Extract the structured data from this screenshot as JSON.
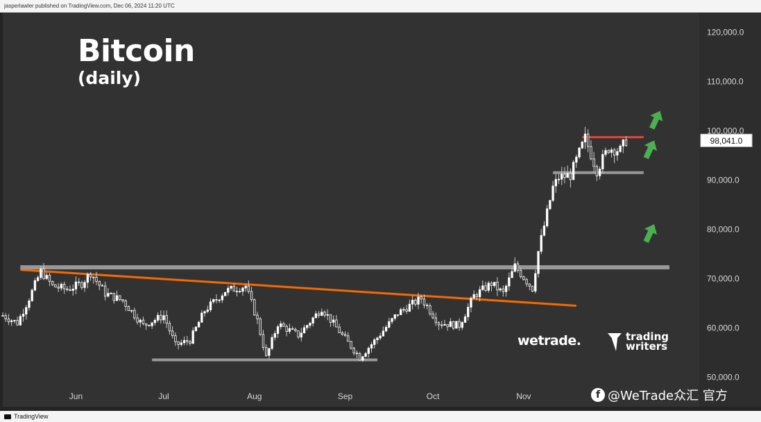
{
  "header": {
    "publisher_text": "jasperlawler published on TradingView.com, Dec 06, 2024 11:20 UTC"
  },
  "footer": {
    "brand": "TradingView"
  },
  "overlay": {
    "title": "Bitcoin",
    "subtitle": "(daily)",
    "brand_wetrade": "wetrade.",
    "brand_tw_line1": "trading",
    "brand_tw_line2": "writers",
    "watermark": "@WeTrade众汇 官方"
  },
  "chart_data": {
    "type": "candlestick",
    "symbol": "Bitcoin",
    "timeframe": "daily",
    "y_ticks": [
      120000,
      110000,
      100000,
      90000,
      80000,
      70000,
      60000,
      50000
    ],
    "y_tick_labels": [
      "120,000.0",
      "110,000.0",
      "100,000.0",
      "90,000.0",
      "80,000.0",
      "70,000.0",
      "60,000.0",
      "50,000.0"
    ],
    "ylim": [
      44000,
      124000
    ],
    "x_range": [
      "2024-05-07",
      "2024-12-31"
    ],
    "x_ticks": [
      {
        "label": "Jun",
        "date": "2024-06-01"
      },
      {
        "label": "Jul",
        "date": "2024-07-01"
      },
      {
        "label": "Aug",
        "date": "2024-08-01"
      },
      {
        "label": "Sep",
        "date": "2024-09-01"
      },
      {
        "label": "Oct",
        "date": "2024-10-01"
      },
      {
        "label": "Nov",
        "date": "2024-11-01"
      }
    ],
    "last_price": 98041,
    "last_price_label": "98,041.0",
    "close_path": [
      [
        "2024-05-07",
        62500
      ],
      [
        "2024-05-12",
        61000
      ],
      [
        "2024-05-16",
        66000
      ],
      [
        "2024-05-20",
        71500
      ],
      [
        "2024-05-24",
        68500
      ],
      [
        "2024-05-29",
        67800
      ],
      [
        "2024-06-03",
        69000
      ],
      [
        "2024-06-06",
        71200
      ],
      [
        "2024-06-11",
        67000
      ],
      [
        "2024-06-17",
        65500
      ],
      [
        "2024-06-24",
        60500
      ],
      [
        "2024-07-01",
        62500
      ],
      [
        "2024-07-05",
        56500
      ],
      [
        "2024-07-10",
        57500
      ],
      [
        "2024-07-15",
        63500
      ],
      [
        "2024-07-22",
        67500
      ],
      [
        "2024-07-29",
        68500
      ],
      [
        "2024-08-02",
        61500
      ],
      [
        "2024-08-05",
        54000
      ],
      [
        "2024-08-09",
        60800
      ],
      [
        "2024-08-16",
        58500
      ],
      [
        "2024-08-24",
        64000
      ],
      [
        "2024-08-31",
        58500
      ],
      [
        "2024-09-06",
        54000
      ],
      [
        "2024-09-12",
        58000
      ],
      [
        "2024-09-19",
        63000
      ],
      [
        "2024-09-27",
        66000
      ],
      [
        "2024-10-03",
        61000
      ],
      [
        "2024-10-10",
        60500
      ],
      [
        "2024-10-15",
        66500
      ],
      [
        "2024-10-21",
        69000
      ],
      [
        "2024-10-25",
        67000
      ],
      [
        "2024-10-29",
        72500
      ],
      [
        "2024-11-04",
        68000
      ],
      [
        "2024-11-06",
        75500
      ],
      [
        "2024-11-11",
        88500
      ],
      [
        "2024-11-13",
        90500
      ],
      [
        "2024-11-17",
        91000
      ],
      [
        "2024-11-22",
        98500
      ],
      [
        "2024-11-26",
        92000
      ],
      [
        "2024-11-30",
        96500
      ],
      [
        "2024-12-04",
        96000
      ],
      [
        "2024-12-06",
        98041
      ]
    ],
    "annotations": {
      "lines": [
        {
          "kind": "trendline",
          "color": "#ff6d00",
          "from": [
            "2024-05-13",
            71800
          ],
          "to": [
            "2024-11-19",
            64500
          ]
        },
        {
          "kind": "resistance",
          "color": "#9e9e9e",
          "value": 72300,
          "from": "2024-05-13",
          "to": "2024-12-31"
        },
        {
          "kind": "support",
          "color": "#9e9e9e",
          "value": 53500,
          "from": "2024-06-27",
          "to": "2024-09-12"
        },
        {
          "kind": "support",
          "color": "#9e9e9e",
          "value": 91500,
          "from": "2024-11-11",
          "to": "2024-12-12"
        },
        {
          "kind": "resistance",
          "color": "#f44336",
          "value": 98700,
          "from": "2024-11-21",
          "to": "2024-12-12"
        }
      ],
      "arrows": [
        {
          "direction": "up",
          "color": "#4caf50",
          "at": [
            "2024-12-14",
            79000
          ]
        },
        {
          "direction": "up",
          "color": "#4caf50",
          "at": [
            "2024-12-14",
            96000
          ]
        },
        {
          "direction": "up",
          "color": "#4caf50",
          "at": [
            "2024-12-16",
            102000
          ]
        }
      ]
    },
    "colors": {
      "up": "#ffffff",
      "down": "#ffffff",
      "wick": "#cfcfcf",
      "background": "#323232"
    },
    "grid": false
  }
}
